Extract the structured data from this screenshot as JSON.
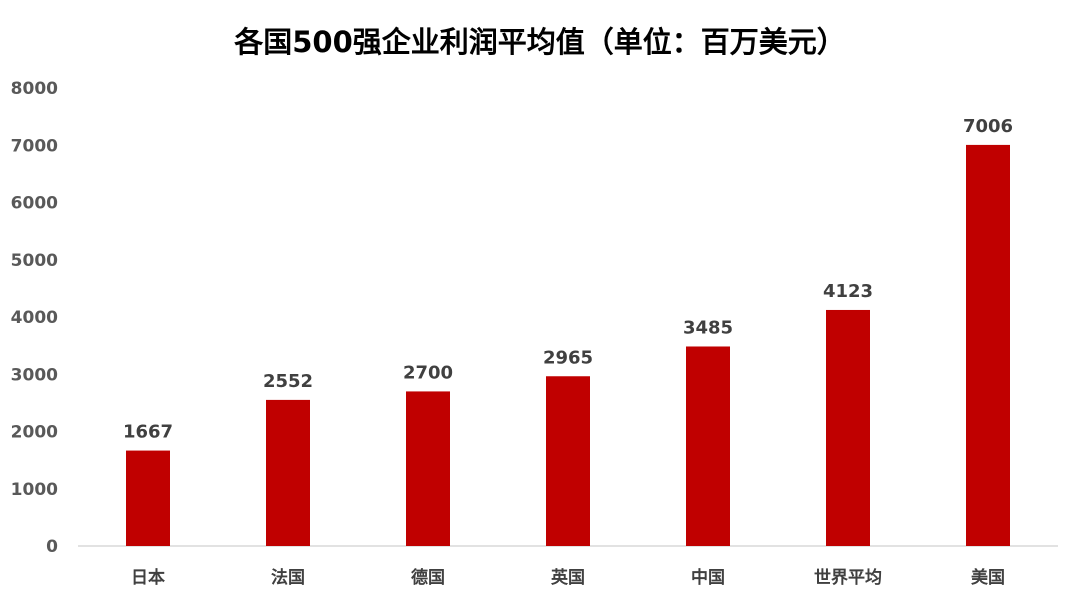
{
  "chart_data": {
    "type": "bar",
    "title": "各国500强企业利润平均值（单位：百万美元）",
    "categories": [
      "日本",
      "法国",
      "德国",
      "英国",
      "中国",
      "世界平均",
      "美国"
    ],
    "values": [
      1667,
      2552,
      2700,
      2965,
      3485,
      4123,
      7006
    ],
    "ylim": [
      0,
      8000
    ],
    "yticks": [
      "0",
      "1000",
      "2000",
      "3000",
      "4000",
      "5000",
      "6000",
      "7000",
      "8000"
    ],
    "grid": false,
    "legend": "none",
    "data_labels": true,
    "bar_color": "#C00000"
  }
}
